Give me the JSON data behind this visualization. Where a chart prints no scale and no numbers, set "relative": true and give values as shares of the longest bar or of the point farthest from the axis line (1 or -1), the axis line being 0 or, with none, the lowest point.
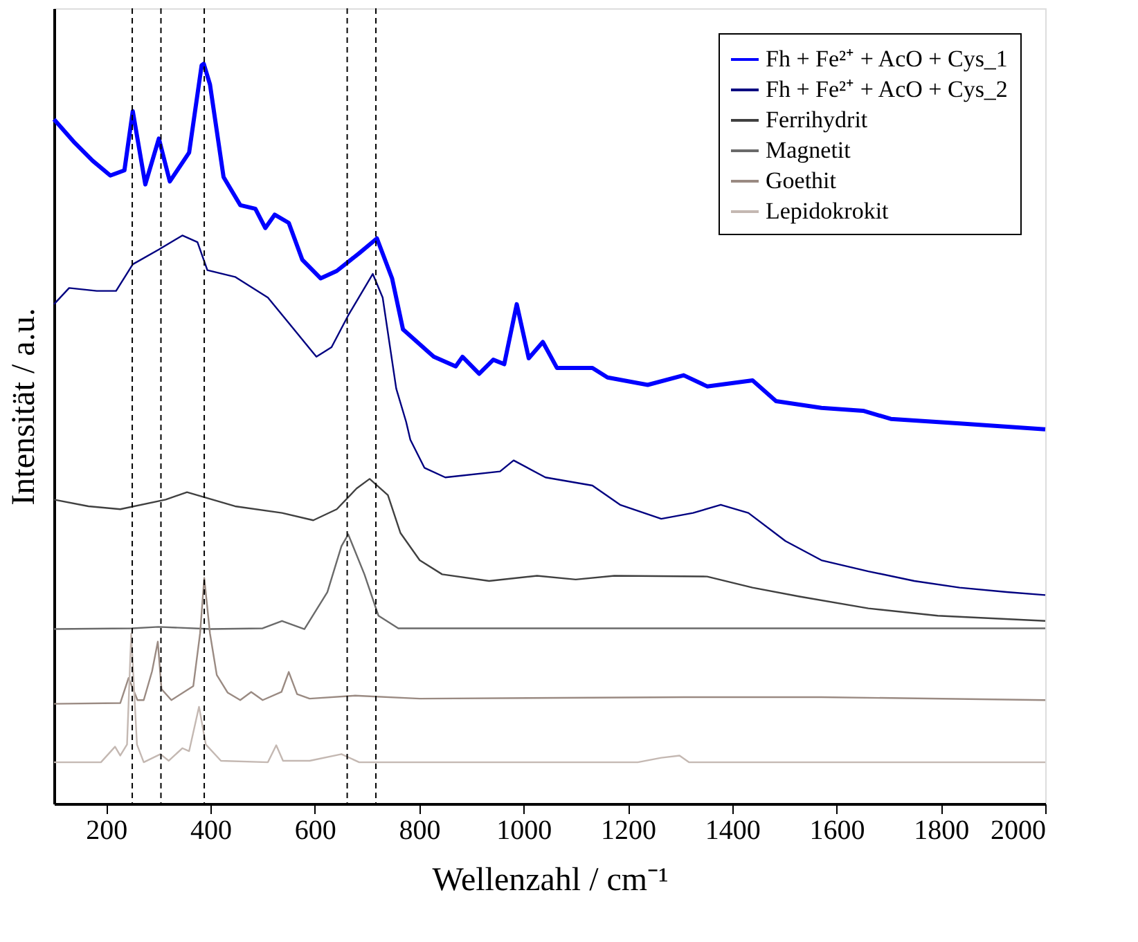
{
  "chart_data": {
    "type": "line",
    "relative": true,
    "xlabel": "Wellenzahl / cm⁻¹",
    "ylabel": "Intensität / a.u.",
    "xlim": [
      100,
      2000
    ],
    "xticks": [
      200,
      400,
      600,
      800,
      1000,
      1200,
      1400,
      1600,
      1800,
      2000
    ],
    "grid": false,
    "legend": "top right",
    "marker": "none",
    "line_style": "solid",
    "ref_lines": [
      {
        "axis": "x",
        "value": 250,
        "color": "#000000",
        "line_style": "dashed"
      },
      {
        "axis": "x",
        "value": 305,
        "color": "#000000",
        "line_style": "dashed"
      },
      {
        "axis": "x",
        "value": 388,
        "color": "#000000",
        "line_style": "dashed"
      },
      {
        "axis": "x",
        "value": 662,
        "color": "#000000",
        "line_style": "dashed"
      },
      {
        "axis": "x",
        "value": 717,
        "color": "#000000",
        "line_style": "dashed"
      }
    ],
    "series": [
      {
        "name": "Fh + Fe²⁺ + AcO + Cys_1",
        "color": "#0000ff",
        "x": [
          100,
          140,
          174,
          208,
          235,
          251,
          275,
          301,
          322,
          359,
          383,
          387,
          399,
          425,
          457,
          486,
          505,
          523,
          550,
          576,
          611,
          642,
          685,
          719,
          748,
          769,
          804,
          828,
          870,
          883,
          915,
          942,
          963,
          987,
          1010,
          1037,
          1064,
          1132,
          1161,
          1238,
          1307,
          1352,
          1439,
          1484,
          1571,
          1651,
          1704,
          1836,
          2000
        ],
        "values": [
          0.925,
          0.893,
          0.869,
          0.849,
          0.856,
          0.936,
          0.837,
          0.899,
          0.841,
          0.88,
          0.998,
          1.0,
          0.972,
          0.847,
          0.809,
          0.804,
          0.778,
          0.796,
          0.785,
          0.735,
          0.71,
          0.72,
          0.744,
          0.764,
          0.71,
          0.641,
          0.619,
          0.604,
          0.591,
          0.604,
          0.581,
          0.6,
          0.594,
          0.675,
          0.602,
          0.624,
          0.589,
          0.589,
          0.576,
          0.566,
          0.579,
          0.564,
          0.572,
          0.544,
          0.535,
          0.531,
          0.52,
          0.514,
          0.506
        ]
      },
      {
        "name": "Fh + Fe²⁺ + AcO + Cys_2",
        "color": "#000080",
        "x": [
          100,
          129,
          182,
          219,
          251,
          301,
          346,
          375,
          394,
          447,
          510,
          553,
          603,
          632,
          664,
          711,
          730,
          756,
          775,
          783,
          810,
          850,
          955,
          981,
          1042,
          1132,
          1185,
          1264,
          1325,
          1378,
          1431,
          1502,
          1571,
          1661,
          1749,
          1836,
          1926,
          2000
        ],
        "values": [
          0.675,
          0.697,
          0.693,
          0.693,
          0.729,
          0.749,
          0.768,
          0.759,
          0.721,
          0.712,
          0.684,
          0.647,
          0.604,
          0.617,
          0.66,
          0.716,
          0.684,
          0.561,
          0.516,
          0.492,
          0.454,
          0.441,
          0.449,
          0.464,
          0.441,
          0.43,
          0.404,
          0.385,
          0.393,
          0.404,
          0.393,
          0.355,
          0.329,
          0.314,
          0.301,
          0.292,
          0.286,
          0.282
        ]
      },
      {
        "name": "Ferrihydrit",
        "color": "#404040",
        "x": [
          100,
          166,
          227,
          314,
          355,
          447,
          537,
          597,
          642,
          680,
          705,
          740,
          764,
          801,
          844,
          934,
          1026,
          1100,
          1174,
          1352,
          1439,
          1529,
          1661,
          1794,
          2000
        ],
        "values": [
          0.411,
          0.402,
          0.398,
          0.411,
          0.421,
          0.402,
          0.393,
          0.383,
          0.398,
          0.426,
          0.439,
          0.417,
          0.366,
          0.329,
          0.31,
          0.301,
          0.308,
          0.303,
          0.308,
          0.307,
          0.292,
          0.28,
          0.264,
          0.254,
          0.247
        ]
      },
      {
        "name": "Magnetit",
        "color": "#6a6a6a",
        "x": [
          100,
          250,
          300,
          400,
          500,
          537,
          580,
          624,
          651,
          664,
          695,
          722,
          760,
          2000
        ],
        "values": [
          0.236,
          0.237,
          0.239,
          0.236,
          0.237,
          0.247,
          0.236,
          0.286,
          0.348,
          0.364,
          0.31,
          0.254,
          0.237,
          0.237
        ]
      },
      {
        "name": "Goethit",
        "color": "#9a8a82",
        "x": [
          100,
          227,
          243,
          260,
          272,
          288,
          299,
          306,
          325,
          367,
          380,
          388,
          399,
          412,
          433,
          457,
          478,
          500,
          536,
          550,
          566,
          590,
          677,
          801,
          1307,
          1571,
          2000
        ],
        "values": [
          0.135,
          0.136,
          0.17,
          0.14,
          0.14,
          0.179,
          0.219,
          0.155,
          0.14,
          0.159,
          0.23,
          0.305,
          0.23,
          0.174,
          0.15,
          0.14,
          0.151,
          0.14,
          0.151,
          0.178,
          0.148,
          0.142,
          0.146,
          0.142,
          0.144,
          0.144,
          0.14
        ]
      },
      {
        "name": "Lepidokrokit",
        "color": "#c4b8b2",
        "x": [
          100,
          190,
          217,
          227,
          240,
          248,
          259,
          272,
          304,
          320,
          346,
          359,
          378,
          391,
          420,
          510,
          526,
          539,
          590,
          651,
          685,
          1219,
          1264,
          1299,
          1317,
          2000
        ],
        "values": [
          0.056,
          0.056,
          0.077,
          0.065,
          0.08,
          0.23,
          0.08,
          0.056,
          0.067,
          0.058,
          0.075,
          0.071,
          0.131,
          0.08,
          0.058,
          0.056,
          0.079,
          0.058,
          0.058,
          0.067,
          0.056,
          0.056,
          0.062,
          0.065,
          0.056,
          0.056
        ]
      }
    ]
  }
}
